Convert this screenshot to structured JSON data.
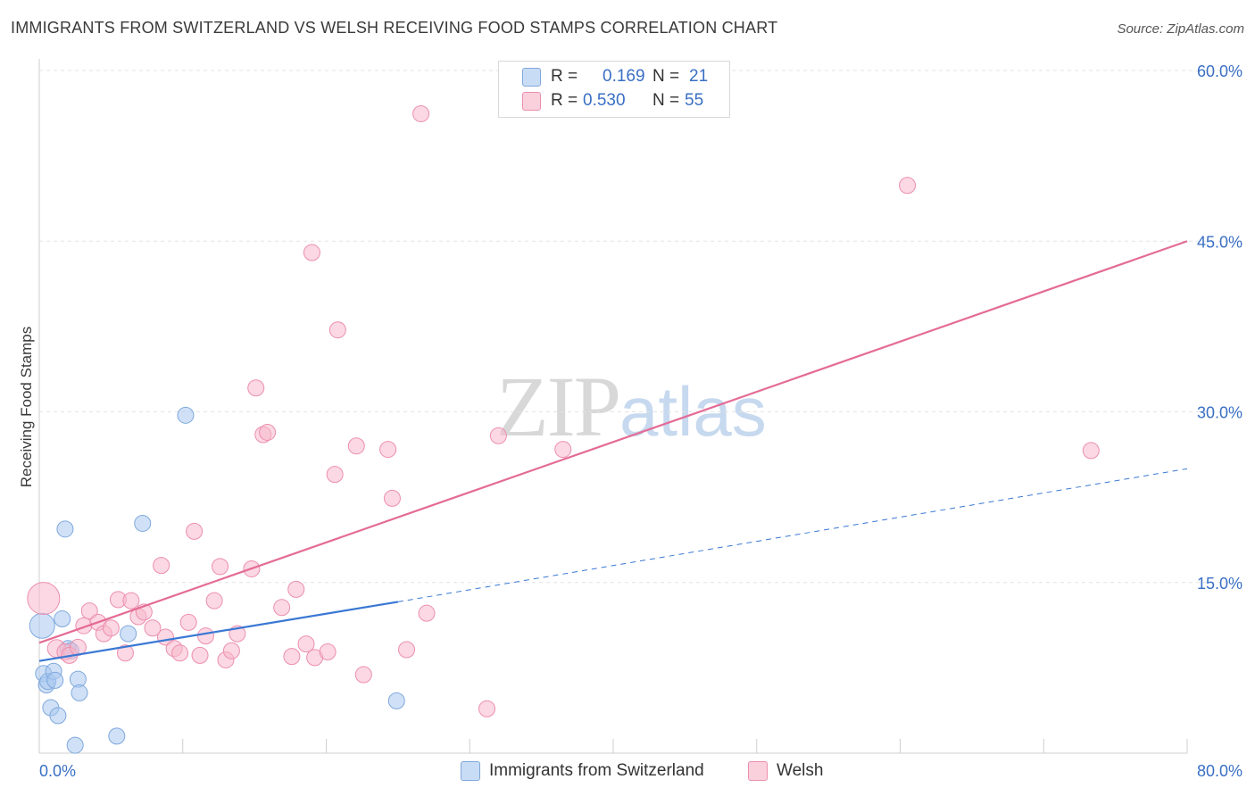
{
  "header": {
    "title": "IMMIGRANTS FROM SWITZERLAND VS WELSH RECEIVING FOOD STAMPS CORRELATION CHART",
    "source": "Source: ZipAtlas.com"
  },
  "watermark": {
    "zip": "ZIP",
    "atlas": "atlas"
  },
  "legend_top": {
    "rows": [
      {
        "r_label": "R =",
        "r_value": "0.169",
        "n_label": "N =",
        "n_value": "21",
        "color": "#a9c8f0"
      },
      {
        "r_label": "R =",
        "r_value": "0.530",
        "n_label": "N =",
        "n_value": "55",
        "color": "#f7b8cc"
      }
    ]
  },
  "legend_bottom": {
    "items": [
      {
        "label": "Immigrants from Switzerland",
        "color": "#a9c8f0"
      },
      {
        "label": "Welsh",
        "color": "#f7b8cc"
      }
    ]
  },
  "colors": {
    "blue_fill": "#a9c8f0",
    "blue_stroke": "#7fa8dc",
    "blue_line": "#3a78d4",
    "pink_fill": "#f7b8cc",
    "pink_stroke": "#ec8fae",
    "pink_line": "#e46b96",
    "tick_label": "#3a6fc4",
    "grid": "#e3e3e3"
  },
  "chart_data": {
    "type": "scatter",
    "title": "IMMIGRANTS FROM SWITZERLAND VS WELSH RECEIVING FOOD STAMPS CORRELATION CHART",
    "xlabel": "",
    "ylabel": "Receiving Food Stamps",
    "xlim": [
      0,
      80
    ],
    "ylim": [
      0,
      60
    ],
    "x_tick_labels": [
      "0.0%",
      "80.0%"
    ],
    "y_ticks": [
      15,
      30,
      45,
      60
    ],
    "y_tick_labels": [
      "15.0%",
      "30.0%",
      "45.0%",
      "60.0%"
    ],
    "grid": true,
    "legend_position": "top-center",
    "series": [
      {
        "name": "Immigrants from Switzerland",
        "color": "#a9c8f0",
        "points": [
          [
            0.2,
            11.2,
            14
          ],
          [
            0.3,
            7.0,
            9
          ],
          [
            0.5,
            6.0,
            9
          ],
          [
            0.6,
            6.3,
            9
          ],
          [
            0.8,
            4.0,
            9
          ],
          [
            1.0,
            7.2,
            9
          ],
          [
            1.1,
            6.4,
            9
          ],
          [
            1.3,
            3.3,
            9
          ],
          [
            1.6,
            11.8,
            9
          ],
          [
            1.8,
            19.7,
            9
          ],
          [
            2.0,
            9.2,
            9
          ],
          [
            2.2,
            9.0,
            9
          ],
          [
            2.5,
            0.7,
            9
          ],
          [
            2.7,
            6.5,
            9
          ],
          [
            2.8,
            5.3,
            9
          ],
          [
            5.4,
            1.5,
            9
          ],
          [
            6.2,
            10.5,
            9
          ],
          [
            7.2,
            20.2,
            9
          ],
          [
            10.2,
            29.7,
            9
          ],
          [
            24.9,
            4.6,
            9
          ]
        ],
        "trend_solid": {
          "x": [
            0,
            25
          ],
          "y": [
            8.1,
            13.3
          ]
        },
        "trend_dashed": {
          "x": [
            25,
            80
          ],
          "y": [
            13.3,
            25.0
          ]
        }
      },
      {
        "name": "Welsh",
        "color": "#f7b8cc",
        "points": [
          [
            0.3,
            13.6,
            18
          ],
          [
            1.2,
            9.2,
            10
          ],
          [
            1.8,
            8.9,
            9
          ],
          [
            2.1,
            8.6,
            9
          ],
          [
            2.7,
            9.3,
            9
          ],
          [
            3.1,
            11.2,
            9
          ],
          [
            3.5,
            12.5,
            9
          ],
          [
            4.1,
            11.5,
            9
          ],
          [
            4.5,
            10.5,
            9
          ],
          [
            5.0,
            11.0,
            9
          ],
          [
            5.5,
            13.5,
            9
          ],
          [
            6.0,
            8.8,
            9
          ],
          [
            6.4,
            13.4,
            9
          ],
          [
            6.9,
            12.0,
            9
          ],
          [
            7.3,
            12.4,
            9
          ],
          [
            7.9,
            11.0,
            9
          ],
          [
            8.5,
            16.5,
            9
          ],
          [
            8.8,
            10.2,
            9
          ],
          [
            9.4,
            9.2,
            9
          ],
          [
            9.8,
            8.8,
            9
          ],
          [
            10.4,
            11.5,
            9
          ],
          [
            10.8,
            19.5,
            9
          ],
          [
            11.2,
            8.6,
            9
          ],
          [
            11.6,
            10.3,
            9
          ],
          [
            12.2,
            13.4,
            9
          ],
          [
            12.6,
            16.4,
            9
          ],
          [
            13.0,
            8.2,
            9
          ],
          [
            13.4,
            9.0,
            9
          ],
          [
            13.8,
            10.5,
            9
          ],
          [
            14.8,
            16.2,
            9
          ],
          [
            15.1,
            32.1,
            9
          ],
          [
            15.6,
            28.0,
            9
          ],
          [
            15.9,
            28.2,
            9
          ],
          [
            16.9,
            12.8,
            9
          ],
          [
            17.6,
            8.5,
            9
          ],
          [
            17.9,
            14.4,
            9
          ],
          [
            18.6,
            9.6,
            9
          ],
          [
            19.0,
            44.0,
            9
          ],
          [
            19.2,
            8.4,
            9
          ],
          [
            20.1,
            8.9,
            9
          ],
          [
            20.6,
            24.5,
            9
          ],
          [
            20.8,
            37.2,
            9
          ],
          [
            22.1,
            27.0,
            9
          ],
          [
            22.6,
            6.9,
            9
          ],
          [
            24.3,
            26.7,
            9
          ],
          [
            24.6,
            22.4,
            9
          ],
          [
            25.6,
            9.1,
            9
          ],
          [
            26.6,
            56.2,
            9
          ],
          [
            27.0,
            12.3,
            9
          ],
          [
            31.2,
            3.9,
            9
          ],
          [
            32.0,
            27.9,
            9
          ],
          [
            36.5,
            26.7,
            9
          ],
          [
            60.5,
            49.9,
            9
          ],
          [
            73.3,
            26.6,
            9
          ]
        ],
        "trend_solid": {
          "x": [
            0,
            80
          ],
          "y": [
            9.7,
            45.0
          ]
        }
      }
    ]
  }
}
